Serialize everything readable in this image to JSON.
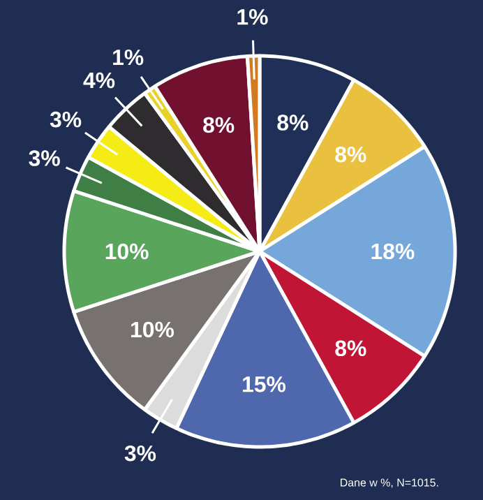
{
  "chart_data": {
    "type": "pie",
    "categories": [
      null,
      null,
      null,
      null,
      null,
      null,
      null,
      null,
      null,
      null,
      null,
      null,
      null,
      null
    ],
    "values": [
      8,
      8,
      18,
      8,
      15,
      3,
      10,
      10,
      3,
      3,
      4,
      1,
      8,
      1
    ],
    "colors": [
      "#1f2f57",
      "#e9c13f",
      "#76a7da",
      "#c01535",
      "#4f67ad",
      "#dcdcdc",
      "#777270",
      "#5aa55c",
      "#3f7f46",
      "#f5ec16",
      "#2e2c2e",
      "#e8d22a",
      "#72102f",
      "#d07a22"
    ],
    "value_labels": [
      "8%",
      "8%",
      "18%",
      "8%",
      "15%",
      "3%",
      "10%",
      "10%",
      "3%",
      "3%",
      "4%",
      "1%",
      "8%",
      "1%"
    ],
    "annotations": [
      "Dane w %, N=1015."
    ]
  }
}
